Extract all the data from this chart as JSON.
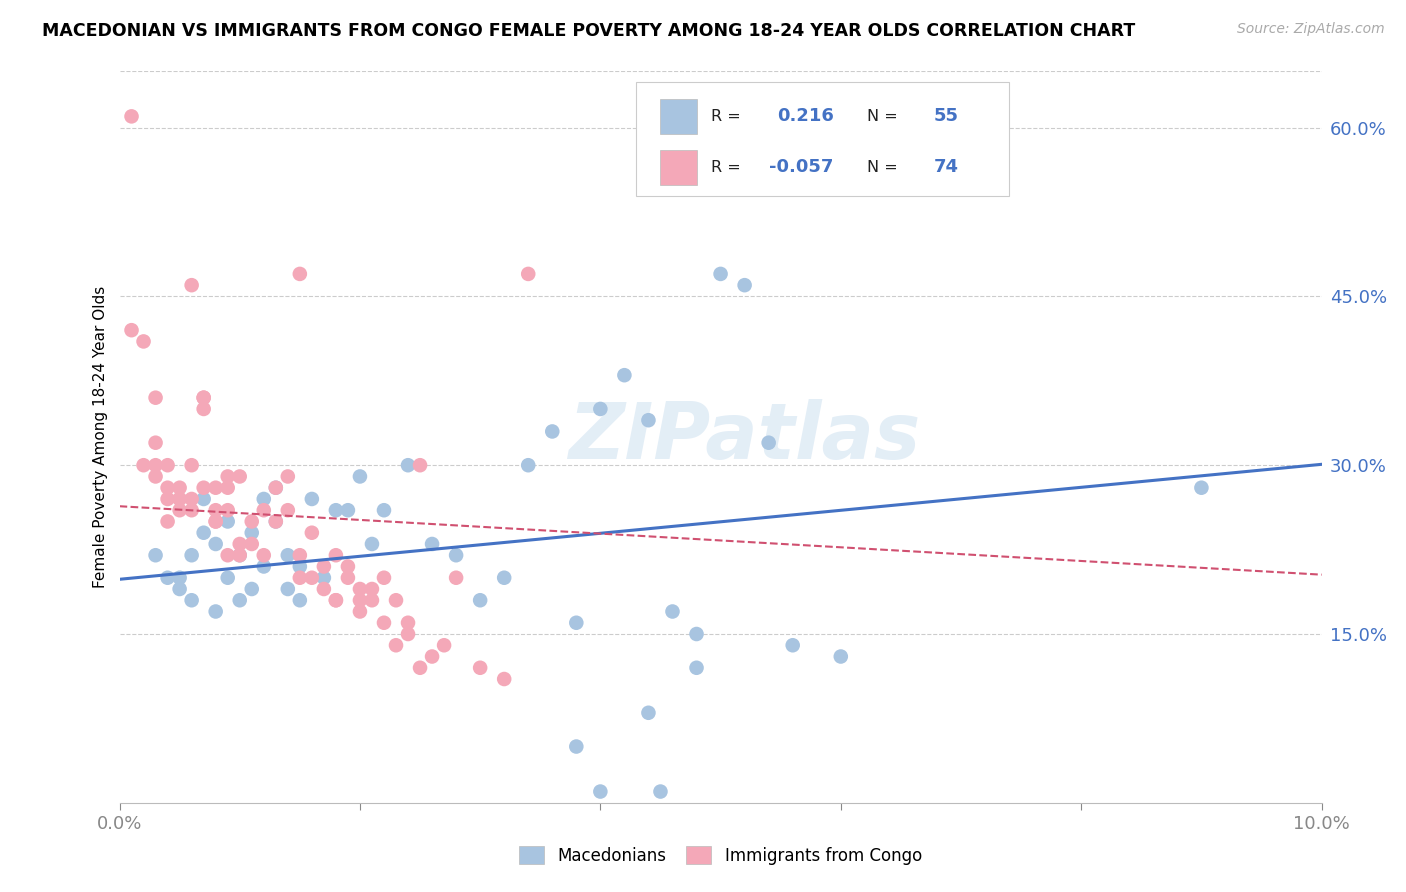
{
  "title": "MACEDONIAN VS IMMIGRANTS FROM CONGO FEMALE POVERTY AMONG 18-24 YEAR OLDS CORRELATION CHART",
  "source": "Source: ZipAtlas.com",
  "ylabel": "Female Poverty Among 18-24 Year Olds",
  "xlim": [
    0.0,
    0.1
  ],
  "ylim": [
    0.0,
    0.65
  ],
  "yticks": [
    0.15,
    0.3,
    0.45,
    0.6
  ],
  "ytick_labels": [
    "15.0%",
    "30.0%",
    "45.0%",
    "60.0%"
  ],
  "xticks": [
    0.0,
    0.02,
    0.04,
    0.06,
    0.08,
    0.1
  ],
  "xtick_labels": [
    "0.0%",
    "",
    "",
    "",
    "",
    "10.0%"
  ],
  "color_blue": "#a8c4e0",
  "color_pink": "#f4a8b8",
  "line_blue": "#4472c4",
  "line_pink": "#d05070",
  "R_blue": 0.216,
  "N_blue": 55,
  "R_pink": -0.057,
  "N_pink": 74,
  "watermark": "ZIPatlas",
  "legend_label_blue": "Macedonians",
  "legend_label_pink": "Immigrants from Congo",
  "blue_x": [
    0.003,
    0.004,
    0.005,
    0.005,
    0.006,
    0.006,
    0.007,
    0.007,
    0.008,
    0.008,
    0.009,
    0.009,
    0.01,
    0.01,
    0.011,
    0.011,
    0.012,
    0.012,
    0.013,
    0.013,
    0.014,
    0.014,
    0.015,
    0.015,
    0.016,
    0.017,
    0.018,
    0.019,
    0.02,
    0.021,
    0.022,
    0.024,
    0.026,
    0.028,
    0.03,
    0.032,
    0.034,
    0.036,
    0.038,
    0.04,
    0.042,
    0.044,
    0.046,
    0.048,
    0.05,
    0.052,
    0.054,
    0.056,
    0.06,
    0.04,
    0.044,
    0.048,
    0.09,
    0.045,
    0.038
  ],
  "blue_y": [
    0.22,
    0.2,
    0.2,
    0.19,
    0.22,
    0.18,
    0.27,
    0.24,
    0.17,
    0.23,
    0.2,
    0.25,
    0.18,
    0.22,
    0.24,
    0.19,
    0.27,
    0.21,
    0.25,
    0.28,
    0.22,
    0.19,
    0.21,
    0.18,
    0.27,
    0.2,
    0.26,
    0.26,
    0.29,
    0.23,
    0.26,
    0.3,
    0.23,
    0.22,
    0.18,
    0.2,
    0.3,
    0.33,
    0.16,
    0.35,
    0.38,
    0.34,
    0.17,
    0.12,
    0.47,
    0.46,
    0.32,
    0.14,
    0.13,
    0.01,
    0.08,
    0.15,
    0.28,
    0.01,
    0.05
  ],
  "pink_x": [
    0.001,
    0.001,
    0.002,
    0.002,
    0.003,
    0.003,
    0.003,
    0.004,
    0.004,
    0.004,
    0.005,
    0.005,
    0.005,
    0.006,
    0.006,
    0.006,
    0.007,
    0.007,
    0.007,
    0.008,
    0.008,
    0.008,
    0.009,
    0.009,
    0.009,
    0.01,
    0.01,
    0.011,
    0.011,
    0.012,
    0.012,
    0.013,
    0.013,
    0.014,
    0.014,
    0.015,
    0.015,
    0.016,
    0.016,
    0.017,
    0.017,
    0.018,
    0.018,
    0.019,
    0.019,
    0.02,
    0.02,
    0.021,
    0.021,
    0.022,
    0.022,
    0.023,
    0.023,
    0.024,
    0.024,
    0.025,
    0.026,
    0.027,
    0.028,
    0.03,
    0.032,
    0.034,
    0.015,
    0.005,
    0.006,
    0.007,
    0.003,
    0.004,
    0.008,
    0.009,
    0.025,
    0.01,
    0.02,
    0.018
  ],
  "pink_y": [
    0.61,
    0.42,
    0.41,
    0.3,
    0.3,
    0.29,
    0.32,
    0.3,
    0.28,
    0.27,
    0.28,
    0.27,
    0.26,
    0.27,
    0.26,
    0.3,
    0.28,
    0.35,
    0.36,
    0.28,
    0.26,
    0.25,
    0.28,
    0.26,
    0.29,
    0.23,
    0.22,
    0.25,
    0.23,
    0.22,
    0.26,
    0.25,
    0.28,
    0.29,
    0.26,
    0.22,
    0.2,
    0.24,
    0.2,
    0.19,
    0.21,
    0.18,
    0.22,
    0.2,
    0.21,
    0.18,
    0.17,
    0.19,
    0.18,
    0.2,
    0.16,
    0.14,
    0.18,
    0.15,
    0.16,
    0.12,
    0.13,
    0.14,
    0.2,
    0.12,
    0.11,
    0.47,
    0.47,
    0.27,
    0.46,
    0.36,
    0.36,
    0.25,
    0.25,
    0.22,
    0.3,
    0.29,
    0.19,
    0.18
  ]
}
